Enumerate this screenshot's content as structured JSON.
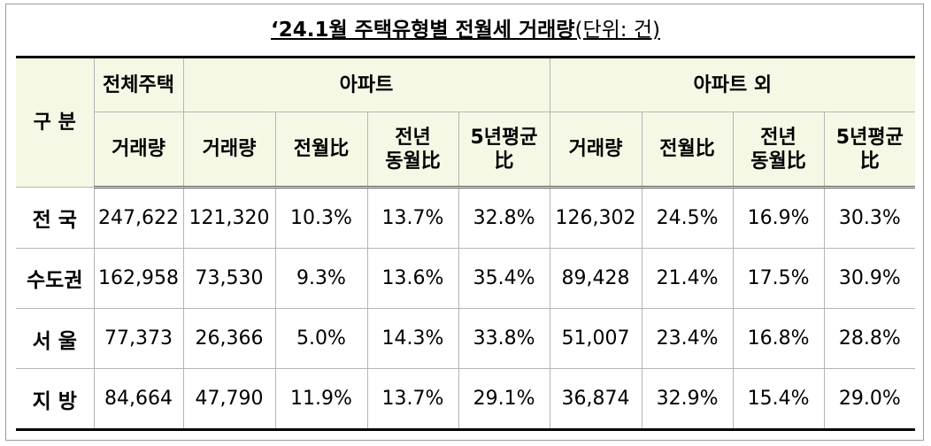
{
  "title": {
    "main": "‘24.1월 주택유형별 전월세 거래량",
    "unit": "(단위: 건)"
  },
  "header": {
    "category": "구 분",
    "all_housing": "전체주택",
    "apartment": "아파트",
    "non_apartment": "아파트 외",
    "sub": {
      "volume": "거래량",
      "mom": "전월比",
      "yoy": "전년\n동월比",
      "avg5y": "5년평균\n比"
    }
  },
  "rows": [
    {
      "region": "전 국",
      "total": "247,622",
      "apt_volume": "121,320",
      "apt_mom": "10.3%",
      "apt_yoy": "13.7%",
      "apt_avg5y": "32.8%",
      "non_volume": "126,302",
      "non_mom": "24.5%",
      "non_yoy": "16.9%",
      "non_avg5y": "30.3%"
    },
    {
      "region": "수도권",
      "total": "162,958",
      "apt_volume": "73,530",
      "apt_mom": "9.3%",
      "apt_yoy": "13.6%",
      "apt_avg5y": "35.4%",
      "non_volume": "89,428",
      "non_mom": "21.4%",
      "non_yoy": "17.5%",
      "non_avg5y": "30.9%"
    },
    {
      "region": "서 울",
      "total": "77,373",
      "apt_volume": "26,366",
      "apt_mom": "5.0%",
      "apt_yoy": "14.3%",
      "apt_avg5y": "33.8%",
      "non_volume": "51,007",
      "non_mom": "23.4%",
      "non_yoy": "16.8%",
      "non_avg5y": "28.8%"
    },
    {
      "region": "지 방",
      "total": "84,664",
      "apt_volume": "47,790",
      "apt_mom": "11.9%",
      "apt_yoy": "13.7%",
      "apt_avg5y": "29.1%",
      "non_volume": "36,874",
      "non_mom": "32.9%",
      "non_yoy": "15.4%",
      "non_avg5y": "29.0%"
    }
  ],
  "colors": {
    "header_bg": "#f6f8e6",
    "grid_line": "#b5b5b5",
    "rule": "#000000"
  }
}
